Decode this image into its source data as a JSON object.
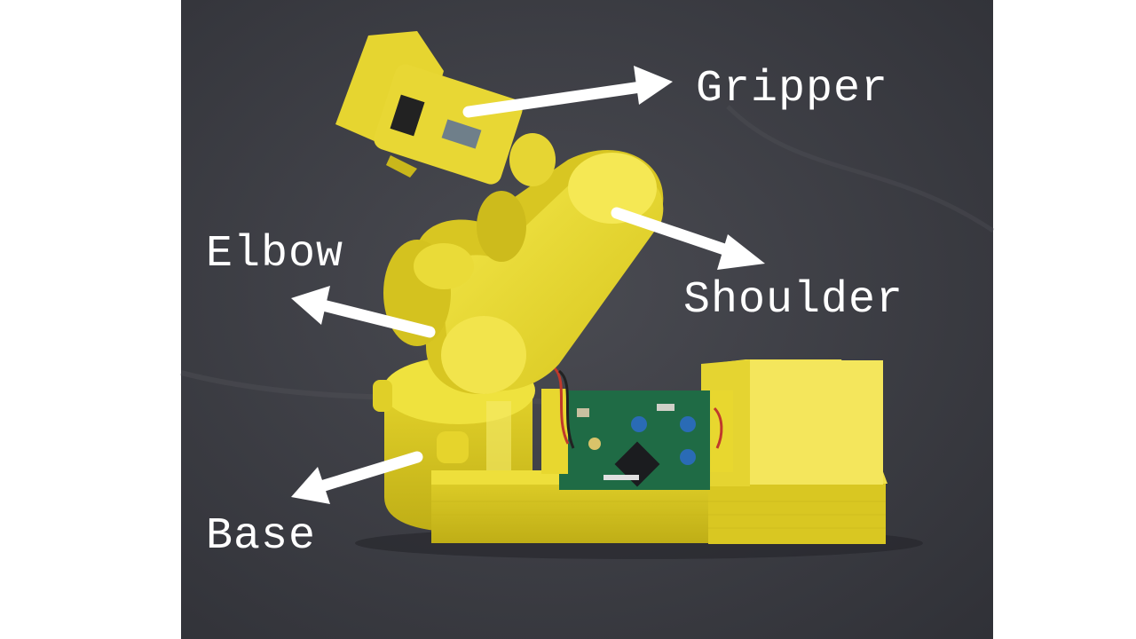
{
  "scene": {
    "background_color": "#3c3d43",
    "side_color": "#ffffff",
    "robot_color": "#ecdc2e",
    "robot_shadow_color": "#b9a813",
    "board_color": "#1f6b45",
    "label_color": "#ffffff"
  },
  "labels": {
    "gripper": "Gripper",
    "elbow": "Elbow",
    "shoulder": "Shoulder",
    "base": "Base"
  }
}
